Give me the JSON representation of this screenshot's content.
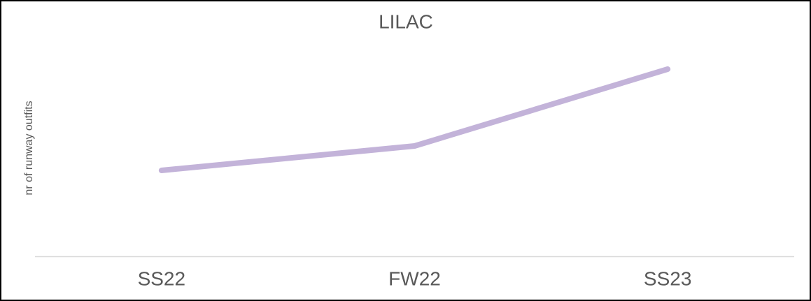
{
  "chart_data": {
    "type": "line",
    "title": "LILAC",
    "y_label": "nr of runway outfits",
    "categories": [
      "SS22",
      "FW22",
      "SS23"
    ],
    "series": [
      {
        "name": "LILAC",
        "color": "#c3b3d9",
        "values": [
          123,
          158,
          268
        ]
      }
    ],
    "ylim": [
      0,
      300
    ]
  }
}
